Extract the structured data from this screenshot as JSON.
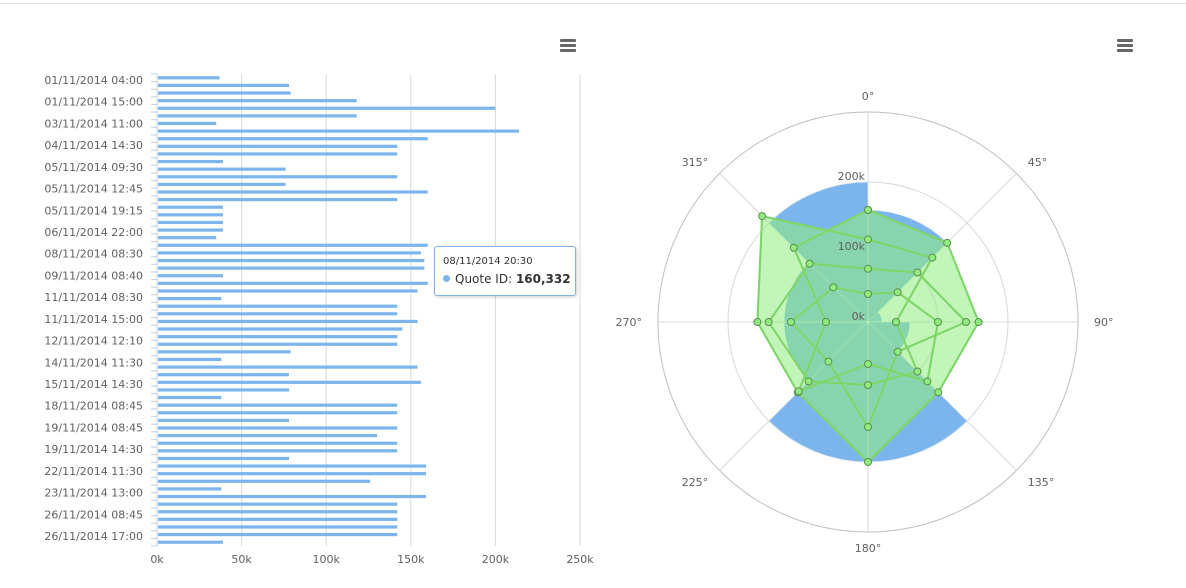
{
  "menus": {
    "left_icon": "hamburger-menu-icon",
    "right_icon": "hamburger-menu-icon"
  },
  "tooltip": {
    "title": "08/11/2014 20:30",
    "series": "Quote ID",
    "value": "160,332"
  },
  "chart_data": [
    {
      "type": "bar",
      "orientation": "horizontal",
      "color": "#7cb5ec",
      "category_labels": [
        "01/11/2014 04:00",
        "01/11/2014 15:00",
        "03/11/2014 11:00",
        "04/11/2014 14:30",
        "05/11/2014 09:30",
        "05/11/2014 12:45",
        "05/11/2014 19:15",
        "06/11/2014 22:00",
        "08/11/2014 08:30",
        "09/11/2014 08:40",
        "11/11/2014 08:30",
        "11/11/2014 15:00",
        "12/11/2014 12:10",
        "14/11/2014 11:30",
        "15/11/2014 14:30",
        "18/11/2014 08:45",
        "19/11/2014 08:45",
        "19/11/2014 14:30",
        "22/11/2014 11:30",
        "23/11/2014 13:00",
        "26/11/2014 08:45",
        "26/11/2014 17:00"
      ],
      "values": [
        37000,
        78000,
        79000,
        118000,
        200000,
        118000,
        35000,
        214000,
        160000,
        142000,
        142000,
        39000,
        76000,
        142000,
        76000,
        160000,
        142000,
        39000,
        39000,
        39000,
        39000,
        35000,
        160000,
        156000,
        158000,
        158000,
        39000,
        160000,
        154000,
        38000,
        142000,
        142000,
        154000,
        145000,
        142000,
        142000,
        79000,
        38000,
        154000,
        78000,
        156000,
        78000,
        38000,
        142000,
        142000,
        78000,
        142000,
        130000,
        142000,
        142000,
        78000,
        159000,
        159000,
        126000,
        38000,
        159000,
        142000,
        142000,
        142000,
        142000,
        142000,
        39000
      ],
      "xlim": [
        0,
        250000
      ],
      "x_ticks": [
        "0k",
        "50k",
        "100k",
        "150k",
        "200k",
        "250k"
      ]
    },
    {
      "type": "polar-area",
      "color": "#7cb5ec",
      "angle_labels": [
        "0°",
        "45°",
        "90°",
        "135°",
        "180°",
        "225°",
        "270°",
        "315°"
      ],
      "radial_ticks": [
        "0k",
        "100k",
        "200k"
      ],
      "rmax": 300000,
      "sectors": [
        {
          "start": 0,
          "end": 45,
          "value": 160000
        },
        {
          "start": 45,
          "end": 90,
          "value": 20000
        },
        {
          "start": 90,
          "end": 135,
          "value": 60000
        },
        {
          "start": 135,
          "end": 180,
          "value": 200000
        },
        {
          "start": 180,
          "end": 225,
          "value": 200000
        },
        {
          "start": 225,
          "end": 270,
          "value": 120000
        },
        {
          "start": 270,
          "end": 315,
          "value": 120000
        },
        {
          "start": 315,
          "end": 360,
          "value": 200000
        }
      ]
    },
    {
      "type": "radar-line",
      "color": "#90ed7d",
      "points": [
        {
          "angle": 0,
          "r": 160000
        },
        {
          "angle": 45,
          "r": 160000
        },
        {
          "angle": 90,
          "r": 158000
        },
        {
          "angle": 135,
          "r": 142000
        },
        {
          "angle": 180,
          "r": 200000
        },
        {
          "angle": 225,
          "r": 142000
        },
        {
          "angle": 270,
          "r": 158000
        },
        {
          "angle": 315,
          "r": 214000
        },
        {
          "angle": 0,
          "r": 118000
        },
        {
          "angle": 45,
          "r": 130000
        },
        {
          "angle": 90,
          "r": 40000
        },
        {
          "angle": 135,
          "r": 100000
        },
        {
          "angle": 180,
          "r": 90000
        },
        {
          "angle": 225,
          "r": 120000
        },
        {
          "angle": 270,
          "r": 142000
        },
        {
          "angle": 315,
          "r": 118000
        },
        {
          "angle": 0,
          "r": 76000
        },
        {
          "angle": 45,
          "r": 100000
        },
        {
          "angle": 90,
          "r": 140000
        },
        {
          "angle": 135,
          "r": 60000
        },
        {
          "angle": 180,
          "r": 150000
        },
        {
          "angle": 225,
          "r": 80000
        },
        {
          "angle": 270,
          "r": 110000
        },
        {
          "angle": 315,
          "r": 70000
        },
        {
          "angle": 0,
          "r": 40000
        },
        {
          "angle": 45,
          "r": 60000
        },
        {
          "angle": 90,
          "r": 100000
        },
        {
          "angle": 135,
          "r": 120000
        },
        {
          "angle": 180,
          "r": 60000
        },
        {
          "angle": 225,
          "r": 140000
        },
        {
          "angle": 270,
          "r": 60000
        },
        {
          "angle": 315,
          "r": 150000
        },
        {
          "angle": 0,
          "r": 160000
        }
      ]
    }
  ]
}
